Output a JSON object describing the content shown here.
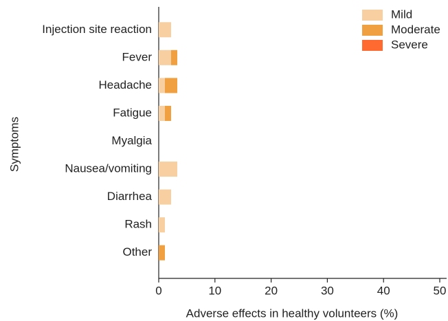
{
  "chart_data": {
    "type": "bar",
    "orientation": "horizontal",
    "stacked": true,
    "xlabel": "Adverse effects in healthy volunteers (%)",
    "ylabel": "Symptoms",
    "categories": [
      "Injection site reaction",
      "Fever",
      "Headache",
      "Fatigue",
      "Myalgia",
      "Nausea/vomiting",
      "Diarrhea",
      "Rash",
      "Other"
    ],
    "series": [
      {
        "name": "Mild",
        "color": "#f7cfa0",
        "values": [
          2.2,
          2.2,
          1.1,
          1.1,
          0,
          3.3,
          2.2,
          1.1,
          0
        ]
      },
      {
        "name": "Moderate",
        "color": "#f0a040",
        "values": [
          0,
          1.1,
          2.2,
          1.1,
          0,
          0,
          0,
          0,
          1.1
        ]
      },
      {
        "name": "Severe",
        "color": "#ff6a30",
        "values": [
          0,
          0,
          0,
          0,
          0,
          0,
          0,
          0,
          0
        ]
      }
    ],
    "xlim": [
      0,
      50
    ],
    "xticks": [
      0,
      10,
      20,
      30,
      40,
      50
    ],
    "legend": "upper right"
  }
}
